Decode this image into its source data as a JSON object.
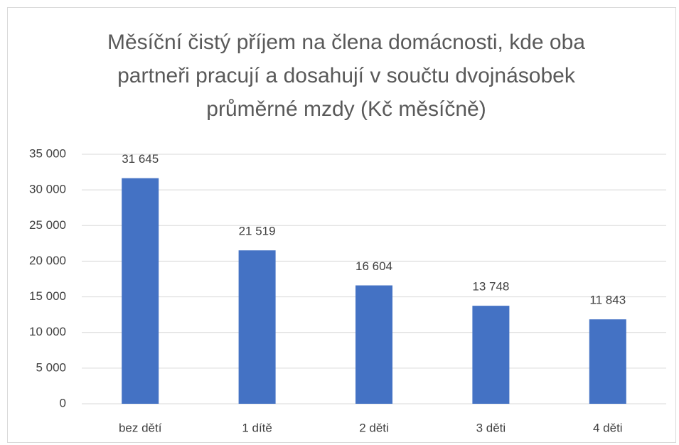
{
  "chart_data": {
    "type": "bar",
    "title": "Měsíční čistý příjem na člena domácnosti, kde oba partneři pracují a dosahují v součtu dvojnásobek průměrné mzdy (Kč měsíčně)",
    "categories": [
      "bez dětí",
      "1 dítě",
      "2 děti",
      "3 děti",
      "4 děti"
    ],
    "values": [
      31645,
      21519,
      16604,
      13748,
      11843
    ],
    "value_labels": [
      "31 645",
      "21 519",
      "16 604",
      "13 748",
      "11 843"
    ],
    "color": "#4472c4",
    "ylim": [
      0,
      35000
    ],
    "yticks": [
      0,
      {
        "value": 5000,
        "label": "5 000"
      },
      {
        "value": 10000,
        "label": "10 000"
      },
      {
        "value": 15000,
        "label": "15 000"
      },
      {
        "value": 20000,
        "label": "20 000"
      },
      {
        "value": 25000,
        "label": "25 000"
      },
      {
        "value": 30000,
        "label": "30 000"
      },
      {
        "value": 35000,
        "label": "35 000"
      }
    ],
    "grid": true
  }
}
